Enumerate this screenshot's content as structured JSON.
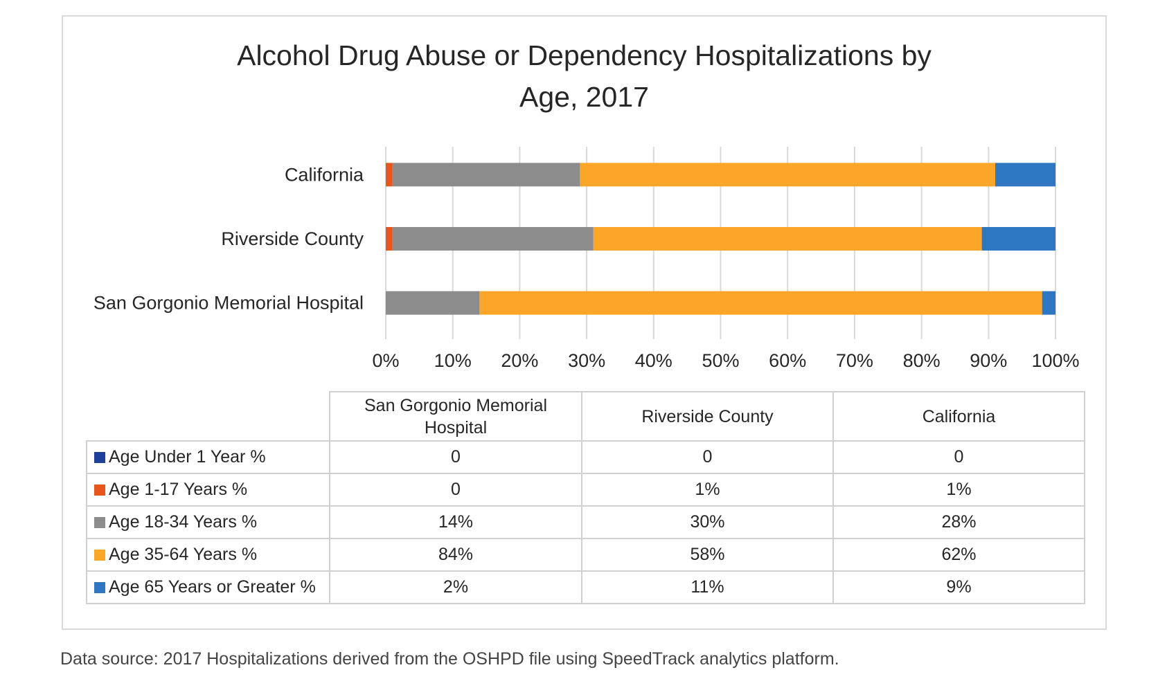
{
  "chart_data": {
    "type": "bar",
    "orientation": "horizontal",
    "stacked": "percent",
    "title": "Alcohol Drug Abuse or Dependency Hospitalizations by Age, 2017",
    "title_lines": [
      "Alcohol Drug Abuse or Dependency Hospitalizations by",
      "Age, 2017"
    ],
    "categories": [
      "California",
      "Riverside County",
      "San Gorgonio Memorial Hospital"
    ],
    "series": [
      {
        "name": "Age Under 1 Year %",
        "color": "#1f3f9a",
        "values": [
          0,
          0,
          0
        ]
      },
      {
        "name": "Age 1-17 Years %",
        "color": "#e8561e",
        "values": [
          1,
          1,
          0
        ]
      },
      {
        "name": "Age 18-34 Years %",
        "color": "#8c8c8c",
        "values": [
          28,
          30,
          14
        ]
      },
      {
        "name": "Age 35-64 Years %",
        "color": "#fba529",
        "values": [
          62,
          58,
          84
        ]
      },
      {
        "name": "Age 65 Years or Greater %",
        "color": "#2f77c1",
        "values": [
          9,
          11,
          2
        ]
      }
    ],
    "xlim": [
      0,
      100
    ],
    "xticks": [
      "0%",
      "10%",
      "20%",
      "30%",
      "40%",
      "50%",
      "60%",
      "70%",
      "80%",
      "90%",
      "100%"
    ],
    "grid": true
  },
  "table": {
    "columns": [
      "San Gorgonio Memorial Hospital",
      "Riverside County",
      "California"
    ],
    "column_lines": [
      [
        "San Gorgonio Memorial",
        "Hospital"
      ],
      [
        "Riverside County"
      ],
      [
        "California"
      ]
    ],
    "rows": [
      {
        "label": "Age Under 1 Year %",
        "color": "#1f3f9a",
        "cells": [
          "0",
          "0",
          "0"
        ]
      },
      {
        "label": "Age 1-17 Years %",
        "color": "#e8561e",
        "cells": [
          "0",
          "1%",
          "1%"
        ]
      },
      {
        "label": "Age 18-34 Years %",
        "color": "#8c8c8c",
        "cells": [
          "14%",
          "30%",
          "28%"
        ]
      },
      {
        "label": "Age 35-64 Years %",
        "color": "#fba529",
        "cells": [
          "84%",
          "58%",
          "62%"
        ]
      },
      {
        "label": "Age 65 Years or Greater %",
        "color": "#2f77c1",
        "cells": [
          "2%",
          "11%",
          "9%"
        ]
      }
    ]
  },
  "source_note": "Data source: 2017 Hospitalizations derived from the OSHPD file using SpeedTrack analytics platform."
}
